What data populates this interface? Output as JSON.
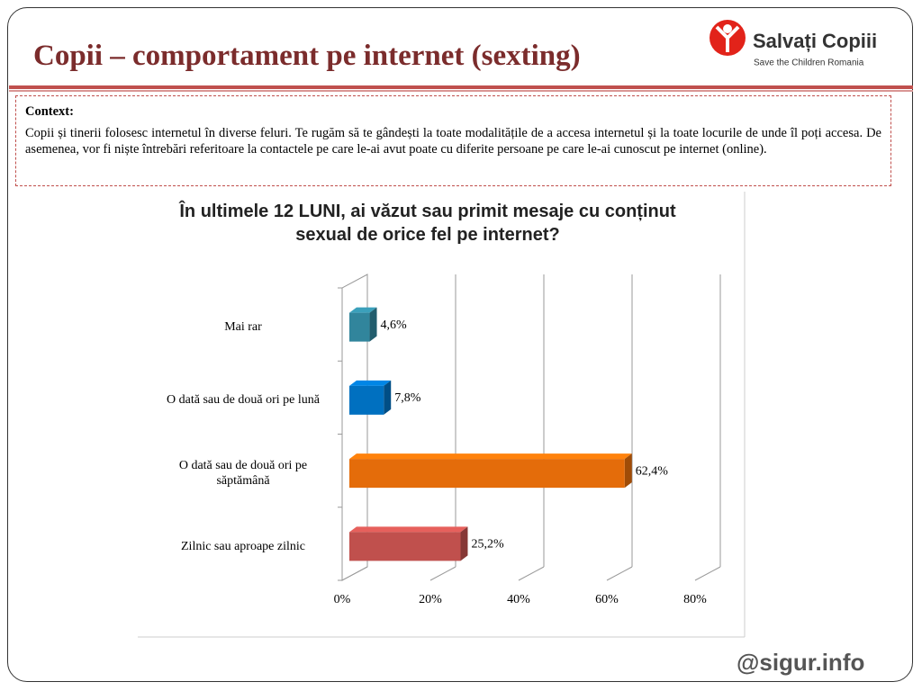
{
  "header": {
    "title": "Copii – comportament pe internet (sexting)",
    "logo_name": "Salvați Copiii",
    "logo_subtitle": "Save the Children Romania"
  },
  "context": {
    "label": "Context:",
    "text": "Copii și tinerii folosesc internetul în diverse feluri. Te rugăm să te gândești la toate modalitățile de a accesa internetul și la toate locurile de unde îl poți accesa.  De asemenea, vor fi niște întrebări referitoare la contactele pe care le-ai avut poate cu diferite persoane pe care le-ai cunoscut pe internet (online)."
  },
  "footer": {
    "logo": "@sigur.info"
  },
  "chart_data": {
    "type": "bar",
    "orientation": "horizontal",
    "title": "În ultimele 12 LUNI, ai văzut sau primit mesaje cu conținut sexual de orice fel pe internet?",
    "categories": [
      "Mai rar",
      "O dată sau de două ori pe lună",
      "O dată sau de două ori pe săptămână",
      "Zilnic sau aproape zilnic"
    ],
    "values": [
      4.6,
      7.8,
      62.4,
      25.2
    ],
    "value_labels": [
      "4,6%",
      "7,8%",
      "62,4%",
      "25,2%"
    ],
    "colors": [
      "#31859c",
      "#0070c0",
      "#e46c0a",
      "#c0504d"
    ],
    "xlim": [
      0,
      80
    ],
    "xticks": [
      {
        "value": 0,
        "label": "0%"
      },
      {
        "value": 20,
        "label": "20%"
      },
      {
        "value": 40,
        "label": "40%"
      },
      {
        "value": 60,
        "label": "60%"
      },
      {
        "value": 80,
        "label": "80%"
      }
    ],
    "grid": true
  }
}
